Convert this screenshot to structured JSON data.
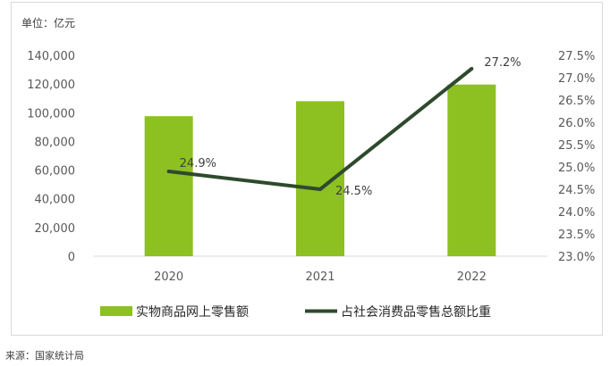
{
  "chart_data": {
    "type": "bar",
    "title": "",
    "unit_label": "单位：亿元",
    "categories": [
      "2020",
      "2021",
      "2022"
    ],
    "series": [
      {
        "name": "实物商品网上零售额",
        "type": "bar",
        "axis": "left",
        "color": "#8dc021",
        "values": [
          97590,
          108042,
          119642
        ]
      },
      {
        "name": "占社会消费品零售总额比重",
        "type": "line",
        "axis": "right",
        "color": "#2e4a2e",
        "values": [
          24.9,
          24.5,
          27.2
        ],
        "labels": [
          "24.9%",
          "24.5%",
          "27.2%"
        ]
      }
    ],
    "y_left": {
      "min": 0,
      "max": 140000,
      "ticks": [
        "0",
        "20,000",
        "40,000",
        "60,000",
        "80,000",
        "100,000",
        "120,000",
        "140,000"
      ]
    },
    "y_right": {
      "min": 23.0,
      "max": 27.5,
      "ticks": [
        "23.0%",
        "23.5%",
        "24.0%",
        "24.5%",
        "25.0%",
        "25.5%",
        "26.0%",
        "26.5%",
        "27.0%",
        "27.5%"
      ]
    },
    "grid": false,
    "legend_position": "bottom"
  },
  "source_text": "来源：国家统计局"
}
